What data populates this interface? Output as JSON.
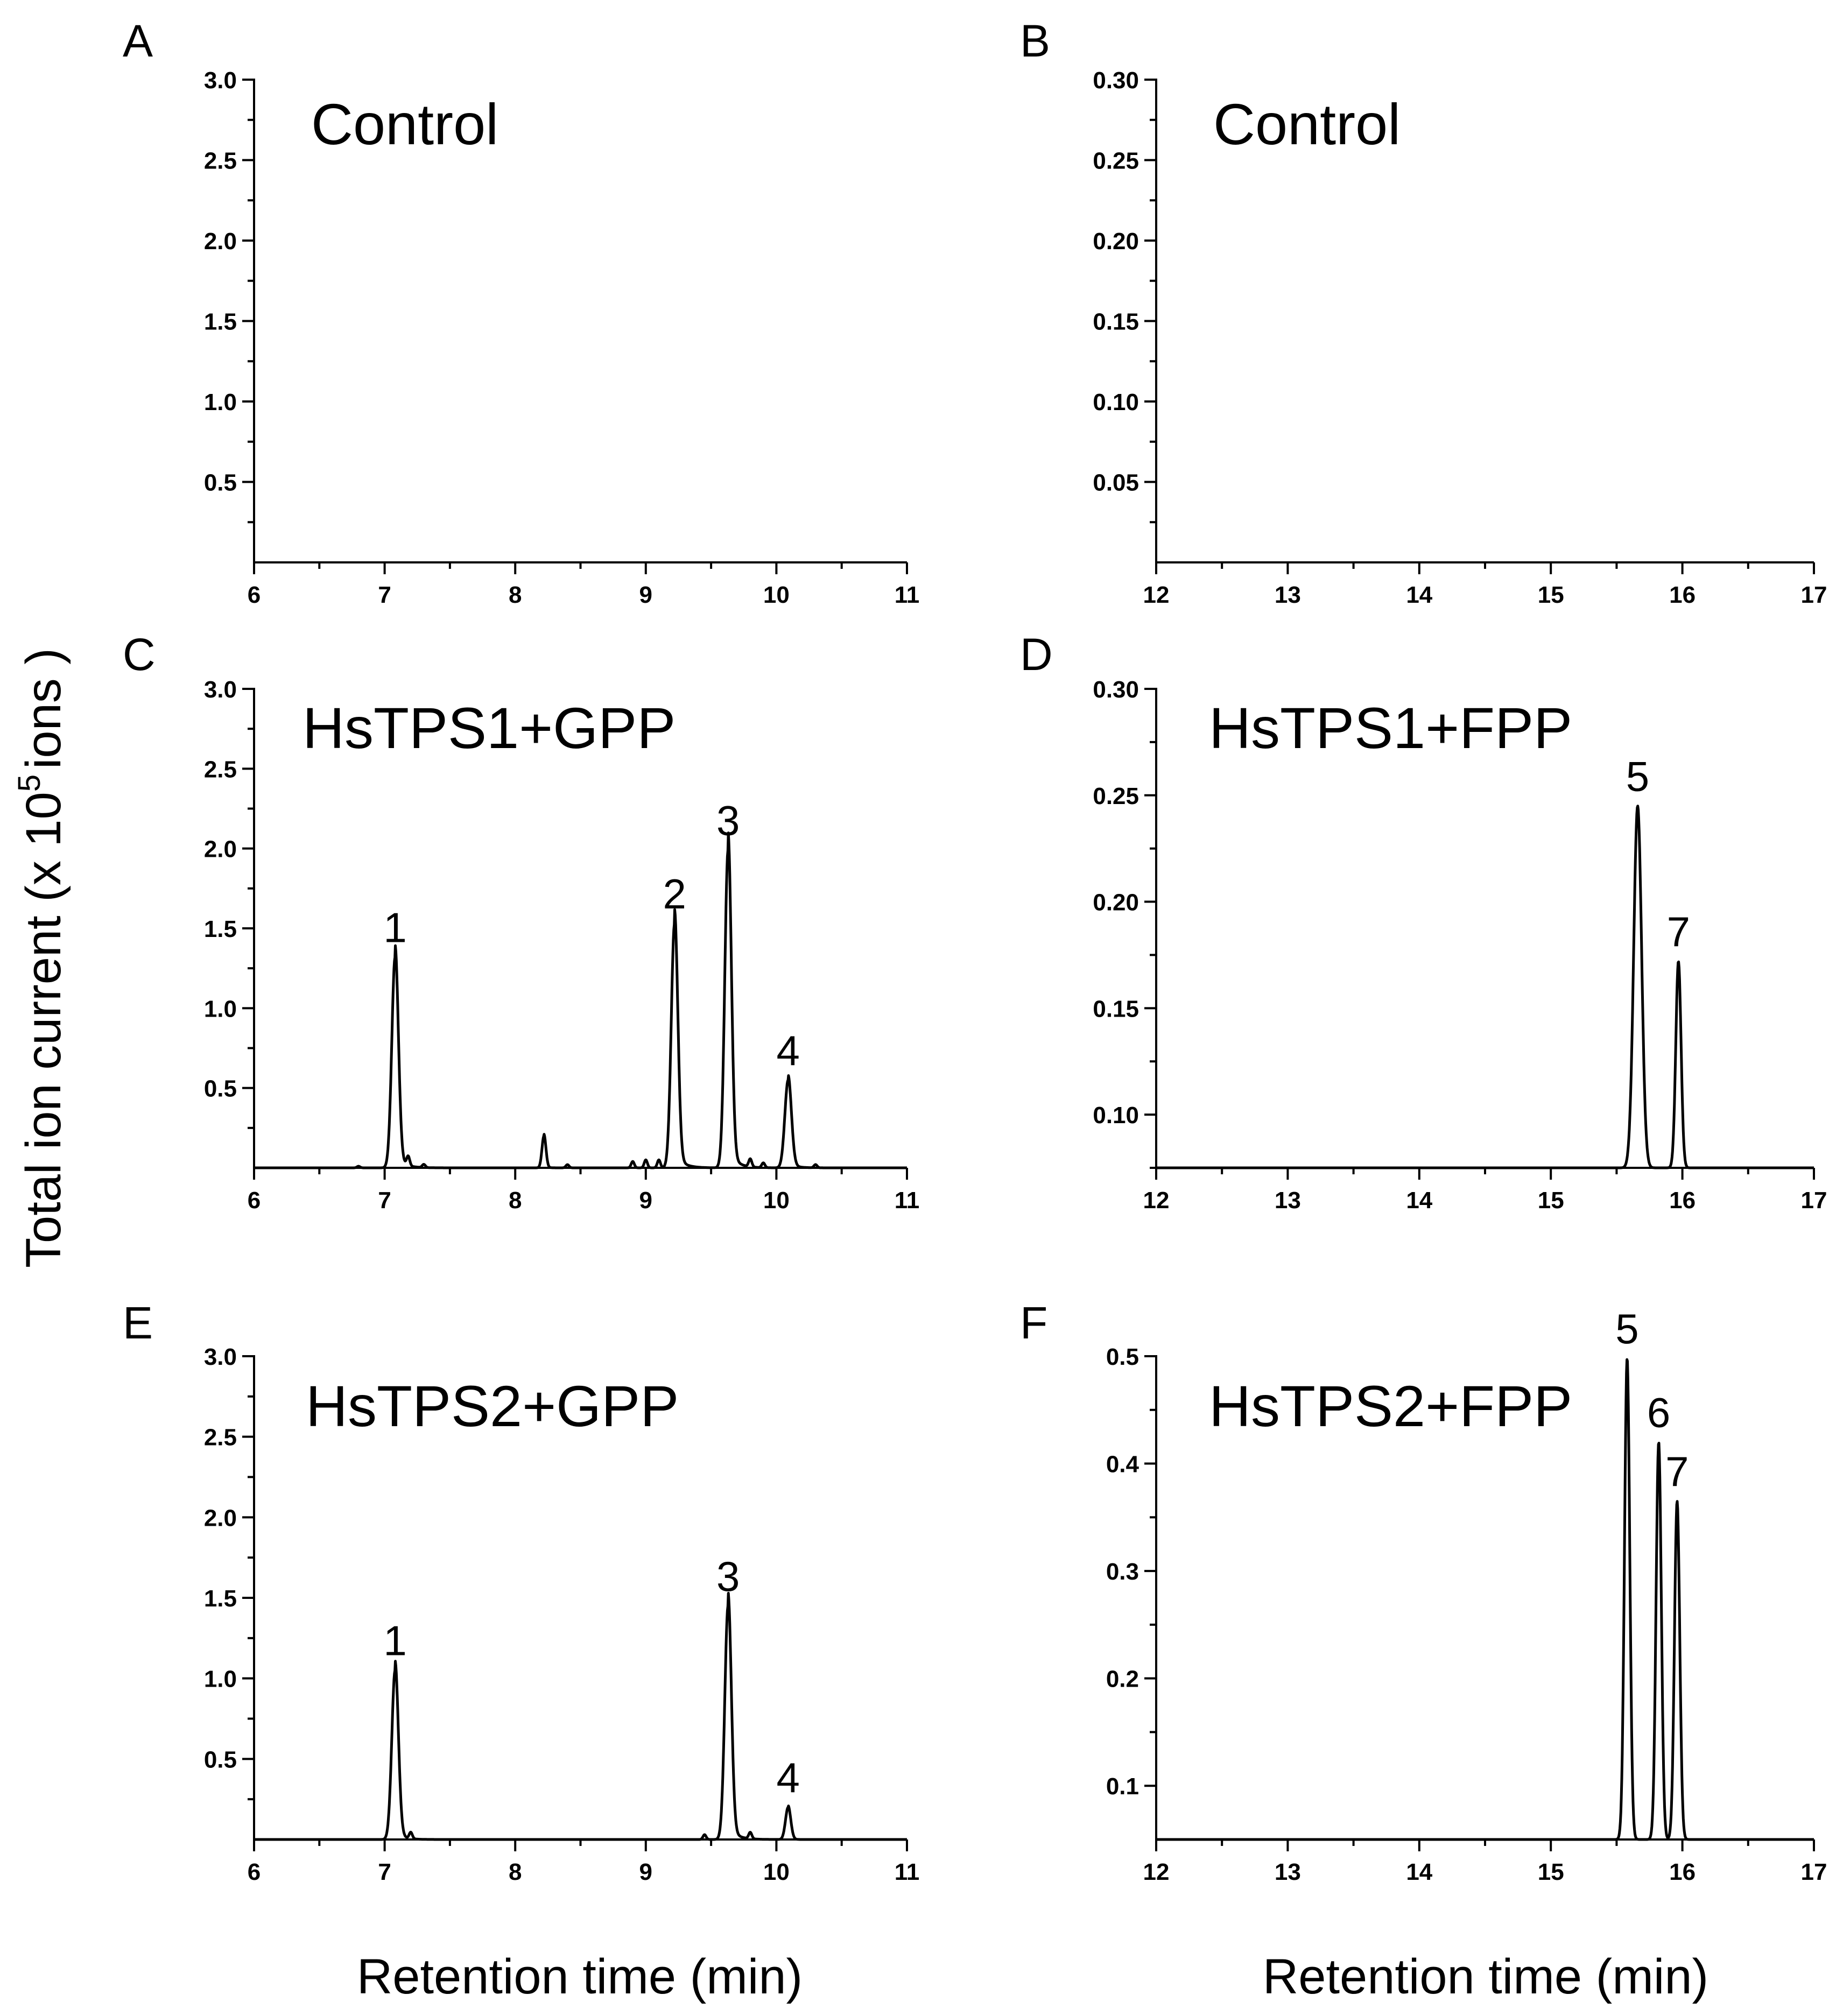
{
  "figure": {
    "y_axis_title": "Total ion current (x 10",
    "y_axis_title_exp": "5",
    "y_axis_title_end": "ions )",
    "x_axis_title_left": "Retention time (min)",
    "x_axis_title_right": "Retention time (min)"
  },
  "chart_data": [
    {
      "panel": "A",
      "type": "line",
      "title": "Control",
      "xlabel": "Retention time (min)",
      "ylabel": "Total ion current (x 10^5 ions)",
      "xlim": [
        6,
        11
      ],
      "ylim": [
        0,
        3.0
      ],
      "xticks": [
        6,
        7,
        8,
        9,
        10,
        11
      ],
      "xtick_labels": [
        "6",
        "7",
        "8",
        "9",
        "10",
        "11"
      ],
      "yticks": [
        0.5,
        1.0,
        1.5,
        2.0,
        2.5,
        3.0
      ],
      "ytick_labels": [
        "0.5",
        "1.0",
        "1.5",
        "2.0",
        "2.5",
        "3.0"
      ],
      "peaks": [],
      "noise": [],
      "labels": []
    },
    {
      "panel": "B",
      "type": "line",
      "title": "Control",
      "xlabel": "Retention time (min)",
      "ylabel": "Total ion current (x 10^5 ions)",
      "xlim": [
        12,
        17
      ],
      "ylim": [
        0,
        0.3
      ],
      "xticks": [
        12,
        13,
        14,
        15,
        16,
        17
      ],
      "xtick_labels": [
        "12",
        "13",
        "14",
        "15",
        "16",
        "17"
      ],
      "yticks": [
        0.05,
        0.1,
        0.15,
        0.2,
        0.25,
        0.3
      ],
      "ytick_labels": [
        "0.05",
        "0.10",
        "0.15",
        "0.20",
        "0.25",
        "0.30"
      ],
      "peaks": [],
      "noise": [],
      "labels": []
    },
    {
      "panel": "C",
      "type": "line",
      "title": "HsTPS1+GPP",
      "xlabel": "Retention time (min)",
      "ylabel": "Total ion current (x 10^5 ions)",
      "xlim": [
        6,
        11
      ],
      "ylim": [
        0,
        3.0
      ],
      "xticks": [
        6,
        7,
        8,
        9,
        10,
        11
      ],
      "xtick_labels": [
        "6",
        "7",
        "8",
        "9",
        "10",
        "11"
      ],
      "yticks": [
        0.5,
        1.0,
        1.5,
        2.0,
        2.5,
        3.0
      ],
      "ytick_labels": [
        "0.5",
        "1.0",
        "1.5",
        "2.0",
        "2.5",
        "3.0"
      ],
      "peaks": [
        {
          "x": 7.08,
          "y": 1.32,
          "width": 0.025,
          "tail": 0.06
        },
        {
          "x": 8.22,
          "y": 0.2,
          "width": 0.015,
          "tail": 0.02
        },
        {
          "x": 9.22,
          "y": 1.53,
          "width": 0.025,
          "tail": 0.06
        },
        {
          "x": 9.63,
          "y": 1.99,
          "width": 0.025,
          "tail": 0.06
        },
        {
          "x": 10.09,
          "y": 0.55,
          "width": 0.025,
          "tail": 0.05
        }
      ],
      "noise": [
        [
          6.8,
          0.01
        ],
        [
          7.18,
          0.06
        ],
        [
          7.3,
          0.02
        ],
        [
          8.4,
          0.02
        ],
        [
          8.9,
          0.04
        ],
        [
          9.0,
          0.05
        ],
        [
          9.1,
          0.05
        ],
        [
          9.8,
          0.05
        ],
        [
          9.9,
          0.03
        ],
        [
          10.3,
          0.02
        ]
      ],
      "labels": [
        {
          "text": "1",
          "x": 7.08,
          "y": 1.32
        },
        {
          "text": "2",
          "x": 9.22,
          "y": 1.53
        },
        {
          "text": "3",
          "x": 9.63,
          "y": 1.99
        },
        {
          "text": "4",
          "x": 10.09,
          "y": 0.55
        }
      ]
    },
    {
      "panel": "D",
      "type": "line",
      "title": "HsTPS1+FPP",
      "xlabel": "Retention time (min)",
      "ylabel": "Total ion current (x 10^5 ions)",
      "xlim": [
        12,
        17
      ],
      "ylim": [
        0.075,
        0.3
      ],
      "xticks": [
        12,
        13,
        14,
        15,
        16,
        17
      ],
      "xtick_labels": [
        "12",
        "13",
        "14",
        "15",
        "16",
        "17"
      ],
      "yticks": [
        0.1,
        0.15,
        0.2,
        0.25,
        0.3
      ],
      "ytick_labels": [
        "0.10",
        "0.15",
        "0.20",
        "0.25",
        "0.30"
      ],
      "peaks": [
        {
          "x": 15.66,
          "y": 0.245,
          "width": 0.03,
          "tail": 0
        },
        {
          "x": 15.97,
          "y": 0.172,
          "width": 0.02,
          "tail": 0
        }
      ],
      "noise": [],
      "labels": [
        {
          "text": "5",
          "x": 15.66,
          "y": 0.245
        },
        {
          "text": "7",
          "x": 15.97,
          "y": 0.172
        }
      ]
    },
    {
      "panel": "E",
      "type": "line",
      "title": "HsTPS2+GPP",
      "xlabel": "Retention time (min)",
      "ylabel": "Total ion current (x 10^5 ions)",
      "xlim": [
        6,
        11
      ],
      "ylim": [
        0,
        3.0
      ],
      "xticks": [
        6,
        7,
        8,
        9,
        10,
        11
      ],
      "xtick_labels": [
        "6",
        "7",
        "8",
        "9",
        "10",
        "11"
      ],
      "yticks": [
        0.5,
        1.0,
        1.5,
        2.0,
        2.5,
        3.0
      ],
      "ytick_labels": [
        "0.5",
        "1.0",
        "1.5",
        "2.0",
        "2.5",
        "3.0"
      ],
      "peaks": [
        {
          "x": 7.08,
          "y": 1.05,
          "width": 0.025,
          "tail": 0.05
        },
        {
          "x": 9.63,
          "y": 1.45,
          "width": 0.025,
          "tail": 0.06
        },
        {
          "x": 10.09,
          "y": 0.2,
          "width": 0.02,
          "tail": 0.02
        }
      ],
      "noise": [
        [
          7.2,
          0.04
        ],
        [
          9.45,
          0.03
        ],
        [
          9.8,
          0.04
        ]
      ],
      "labels": [
        {
          "text": "1",
          "x": 7.08,
          "y": 1.05
        },
        {
          "text": "3",
          "x": 9.63,
          "y": 1.45
        },
        {
          "text": "4",
          "x": 10.09,
          "y": 0.2
        }
      ]
    },
    {
      "panel": "F",
      "type": "line",
      "title": "HsTPS2+FPP",
      "xlabel": "Retention time (min)",
      "ylabel": "Total ion current (x 10^5 ions)",
      "xlim": [
        12,
        17
      ],
      "ylim": [
        0.05,
        0.5
      ],
      "xticks": [
        12,
        13,
        14,
        15,
        16,
        17
      ],
      "xtick_labels": [
        "12",
        "13",
        "14",
        "15",
        "16",
        "17"
      ],
      "yticks": [
        0.1,
        0.2,
        0.3,
        0.4,
        0.5
      ],
      "ytick_labels": [
        "0.1",
        "0.2",
        "0.3",
        "0.4",
        "0.5"
      ],
      "peaks": [
        {
          "x": 15.58,
          "y": 0.498,
          "width": 0.02,
          "tail": 0
        },
        {
          "x": 15.82,
          "y": 0.42,
          "width": 0.02,
          "tail": 0
        },
        {
          "x": 15.96,
          "y": 0.365,
          "width": 0.02,
          "tail": 0
        }
      ],
      "noise": [],
      "labels": [
        {
          "text": "5",
          "x": 15.58,
          "y": 0.498
        },
        {
          "text": "6",
          "x": 15.82,
          "y": 0.42
        },
        {
          "text": "7",
          "x": 15.96,
          "y": 0.365
        }
      ]
    }
  ]
}
